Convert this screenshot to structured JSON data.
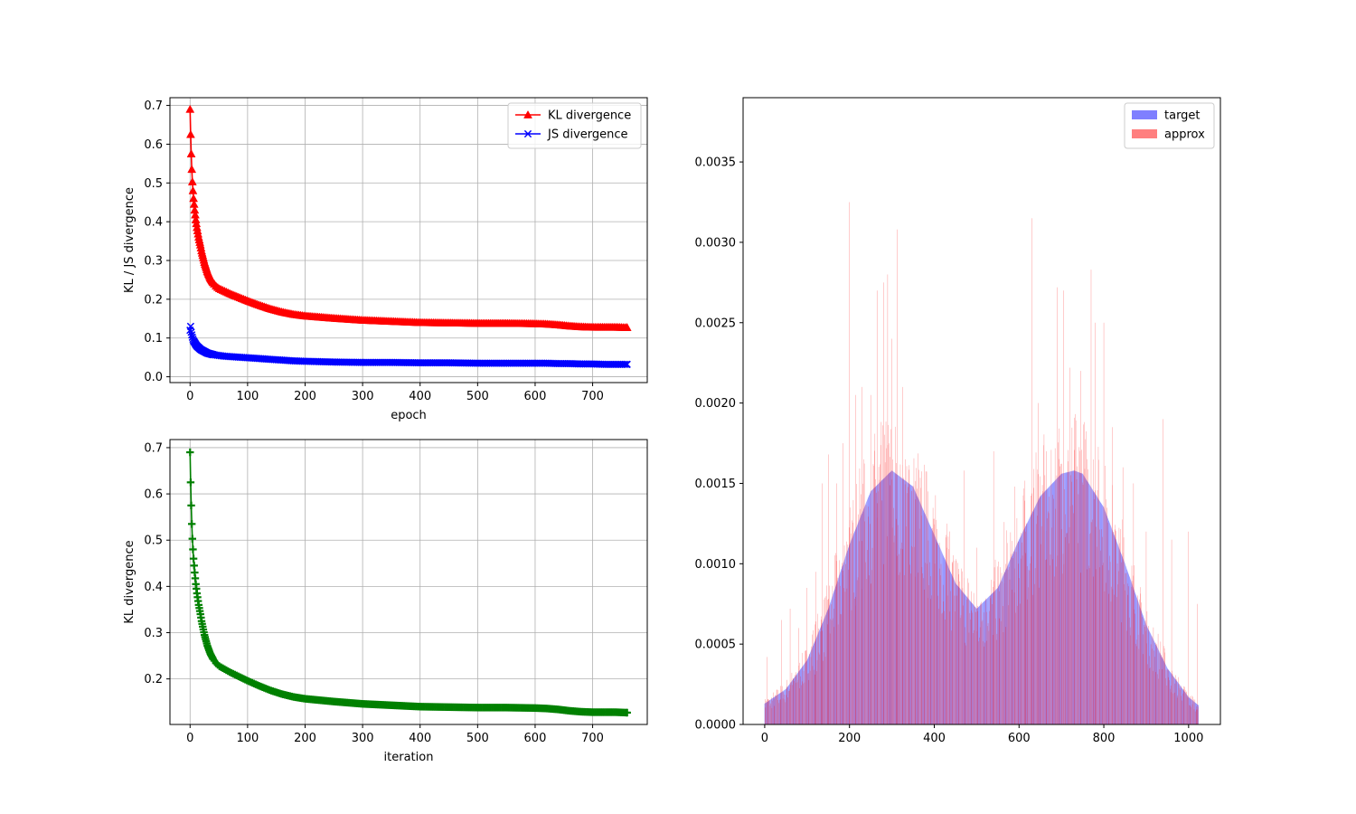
{
  "chart_data": [
    {
      "type": "line",
      "xlabel": "epoch",
      "ylabel": "KL / JS divergence",
      "xlim": [
        -35,
        795
      ],
      "ylim": [
        -0.015,
        0.72
      ],
      "xticks": [
        0,
        100,
        200,
        300,
        400,
        500,
        600,
        700
      ],
      "yticks": [
        0.0,
        0.1,
        0.2,
        0.3,
        0.4,
        0.5,
        0.6,
        0.7
      ],
      "ytick_labels": [
        "0.0",
        "0.1",
        "0.2",
        "0.3",
        "0.4",
        "0.5",
        "0.6",
        "0.7"
      ],
      "grid": true,
      "legend": "top-right",
      "series": [
        {
          "name": "KL divergence",
          "color": "#ff0000",
          "marker": "triangle",
          "x": [
            0,
            1,
            2,
            3,
            4,
            5,
            6,
            8,
            10,
            12,
            15,
            18,
            20,
            25,
            30,
            35,
            40,
            45,
            50,
            60,
            70,
            80,
            90,
            100,
            120,
            140,
            160,
            180,
            200,
            250,
            300,
            350,
            400,
            450,
            500,
            550,
            600,
            620,
            640,
            660,
            680,
            700,
            720,
            740,
            760
          ],
          "y": [
            0.69,
            0.625,
            0.575,
            0.535,
            0.503,
            0.48,
            0.46,
            0.43,
            0.405,
            0.385,
            0.36,
            0.34,
            0.325,
            0.295,
            0.272,
            0.255,
            0.243,
            0.234,
            0.228,
            0.221,
            0.214,
            0.208,
            0.202,
            0.196,
            0.185,
            0.175,
            0.167,
            0.161,
            0.157,
            0.151,
            0.146,
            0.143,
            0.14,
            0.139,
            0.138,
            0.138,
            0.137,
            0.136,
            0.134,
            0.131,
            0.129,
            0.128,
            0.128,
            0.128,
            0.127
          ]
        },
        {
          "name": "JS divergence",
          "color": "#0000ff",
          "marker": "x",
          "x": [
            0,
            1,
            2,
            3,
            4,
            5,
            6,
            8,
            10,
            12,
            15,
            18,
            20,
            25,
            30,
            35,
            40,
            45,
            50,
            60,
            70,
            80,
            90,
            100,
            120,
            140,
            160,
            180,
            200,
            250,
            300,
            350,
            400,
            450,
            500,
            550,
            600,
            620,
            640,
            660,
            680,
            700,
            720,
            740,
            760
          ],
          "y": [
            0.12,
            0.13,
            0.115,
            0.108,
            0.102,
            0.097,
            0.093,
            0.088,
            0.083,
            0.079,
            0.075,
            0.071,
            0.069,
            0.065,
            0.061,
            0.059,
            0.057,
            0.056,
            0.055,
            0.053,
            0.052,
            0.051,
            0.05,
            0.049,
            0.047,
            0.045,
            0.043,
            0.041,
            0.04,
            0.038,
            0.037,
            0.037,
            0.036,
            0.036,
            0.035,
            0.035,
            0.035,
            0.035,
            0.034,
            0.034,
            0.033,
            0.033,
            0.032,
            0.032,
            0.032
          ]
        }
      ]
    },
    {
      "type": "line",
      "xlabel": "iteration",
      "ylabel": "KL divergence",
      "xlim": [
        -35,
        795
      ],
      "ylim": [
        0.1015,
        0.7175
      ],
      "xticks": [
        0,
        100,
        200,
        300,
        400,
        500,
        600,
        700
      ],
      "yticks": [
        0.2,
        0.3,
        0.4,
        0.5,
        0.6,
        0.7
      ],
      "ytick_labels": [
        "0.2",
        "0.3",
        "0.4",
        "0.5",
        "0.6",
        "0.7"
      ],
      "grid": true,
      "series": [
        {
          "color": "#008000",
          "marker": "plus",
          "x": [
            0,
            1,
            2,
            3,
            4,
            5,
            6,
            8,
            10,
            12,
            15,
            18,
            20,
            25,
            30,
            35,
            40,
            45,
            50,
            60,
            70,
            80,
            90,
            100,
            120,
            140,
            160,
            180,
            200,
            250,
            300,
            350,
            400,
            450,
            500,
            550,
            600,
            620,
            640,
            660,
            680,
            700,
            720,
            740,
            760
          ],
          "y": [
            0.69,
            0.625,
            0.575,
            0.535,
            0.503,
            0.48,
            0.46,
            0.43,
            0.405,
            0.385,
            0.36,
            0.34,
            0.325,
            0.295,
            0.272,
            0.255,
            0.243,
            0.234,
            0.228,
            0.221,
            0.214,
            0.208,
            0.202,
            0.196,
            0.185,
            0.175,
            0.167,
            0.161,
            0.157,
            0.151,
            0.146,
            0.143,
            0.14,
            0.139,
            0.138,
            0.138,
            0.137,
            0.136,
            0.134,
            0.131,
            0.129,
            0.128,
            0.128,
            0.128,
            0.127
          ]
        }
      ]
    },
    {
      "type": "bar",
      "xlim": [
        -51,
        1075
      ],
      "ylim": [
        0,
        0.0039
      ],
      "xticks": [
        0,
        200,
        400,
        600,
        800,
        1000
      ],
      "yticks": [
        0,
        0.0005,
        0.001,
        0.0015,
        0.002,
        0.0025,
        0.003,
        0.0035
      ],
      "ytick_labels": [
        "0.0000",
        "0.0005",
        "0.0010",
        "0.0015",
        "0.0020",
        "0.0025",
        "0.0030",
        "0.0035"
      ],
      "legend": "top-right",
      "series": [
        {
          "name": "target",
          "color": "#0000ff",
          "alpha": 0.5,
          "description_points": {
            "x": [
              0,
              50,
              100,
              150,
              200,
              250,
              300,
              350,
              400,
              450,
              500,
              550,
              600,
              650,
              700,
              730,
              750,
              800,
              850,
              900,
              950,
              1000,
              1023
            ],
            "y": [
              0.00013,
              0.00022,
              0.0004,
              0.00072,
              0.00112,
              0.00145,
              0.00158,
              0.00148,
              0.00118,
              0.00088,
              0.00072,
              0.00085,
              0.00115,
              0.00142,
              0.00156,
              0.00158,
              0.00156,
              0.00135,
              0.001,
              0.00062,
              0.00035,
              0.00017,
              0.00012
            ]
          }
        },
        {
          "name": "approx",
          "color": "#ff0000",
          "alpha": 0.5,
          "spikes": {
            "x": [
              5,
              40,
              60,
              80,
              100,
              120,
              135,
              150,
              170,
              185,
              200,
              215,
              230,
              250,
              265,
              280,
              290,
              300,
              312,
              325,
              340,
              355,
              370,
              385,
              400,
              430,
              470,
              500,
              540,
              565,
              590,
              615,
              630,
              645,
              665,
              690,
              705,
              720,
              745,
              770,
              780,
              800,
              820,
              845,
              870,
              900,
              940,
              960,
              1000,
              1020
            ],
            "y": [
              0.00042,
              0.00065,
              0.00072,
              0.0006,
              0.00085,
              0.00095,
              0.0015,
              0.00168,
              0.0015,
              0.00175,
              0.00325,
              0.00205,
              0.0021,
              0.00205,
              0.0027,
              0.00275,
              0.0028,
              0.0024,
              0.00308,
              0.0021,
              0.0015,
              0.0014,
              0.0013,
              0.00145,
              0.00128,
              0.00125,
              0.00158,
              0.0011,
              0.0017,
              0.00126,
              0.00148,
              0.0012,
              0.00315,
              0.002,
              0.0017,
              0.00272,
              0.0027,
              0.00222,
              0.0022,
              0.00283,
              0.0025,
              0.0025,
              0.00185,
              0.0016,
              0.0015,
              0.0012,
              0.0019,
              0.00115,
              0.0012,
              0.00075
            ]
          }
        }
      ]
    }
  ]
}
